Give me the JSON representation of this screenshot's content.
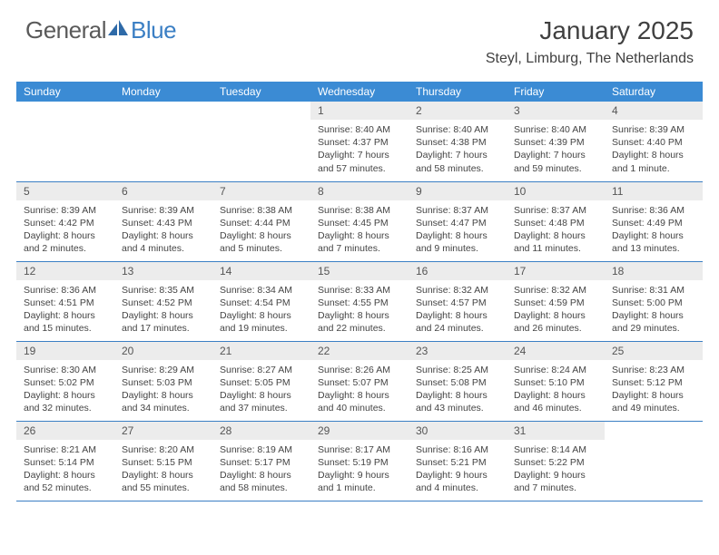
{
  "logo": {
    "text1": "General",
    "text2": "Blue"
  },
  "title": "January 2025",
  "location": "Steyl, Limburg, The Netherlands",
  "colors": {
    "header_bg": "#3b8bd4",
    "header_text": "#ffffff",
    "daynum_bg": "#ececec",
    "border": "#3b7fc4",
    "logo_gray": "#5a5a5a",
    "logo_blue": "#3b7fc4"
  },
  "weekdays": [
    "Sunday",
    "Monday",
    "Tuesday",
    "Wednesday",
    "Thursday",
    "Friday",
    "Saturday"
  ],
  "weeks": [
    [
      null,
      null,
      null,
      {
        "n": "1",
        "sr": "Sunrise: 8:40 AM",
        "ss": "Sunset: 4:37 PM",
        "d1": "Daylight: 7 hours",
        "d2": "and 57 minutes."
      },
      {
        "n": "2",
        "sr": "Sunrise: 8:40 AM",
        "ss": "Sunset: 4:38 PM",
        "d1": "Daylight: 7 hours",
        "d2": "and 58 minutes."
      },
      {
        "n": "3",
        "sr": "Sunrise: 8:40 AM",
        "ss": "Sunset: 4:39 PM",
        "d1": "Daylight: 7 hours",
        "d2": "and 59 minutes."
      },
      {
        "n": "4",
        "sr": "Sunrise: 8:39 AM",
        "ss": "Sunset: 4:40 PM",
        "d1": "Daylight: 8 hours",
        "d2": "and 1 minute."
      }
    ],
    [
      {
        "n": "5",
        "sr": "Sunrise: 8:39 AM",
        "ss": "Sunset: 4:42 PM",
        "d1": "Daylight: 8 hours",
        "d2": "and 2 minutes."
      },
      {
        "n": "6",
        "sr": "Sunrise: 8:39 AM",
        "ss": "Sunset: 4:43 PM",
        "d1": "Daylight: 8 hours",
        "d2": "and 4 minutes."
      },
      {
        "n": "7",
        "sr": "Sunrise: 8:38 AM",
        "ss": "Sunset: 4:44 PM",
        "d1": "Daylight: 8 hours",
        "d2": "and 5 minutes."
      },
      {
        "n": "8",
        "sr": "Sunrise: 8:38 AM",
        "ss": "Sunset: 4:45 PM",
        "d1": "Daylight: 8 hours",
        "d2": "and 7 minutes."
      },
      {
        "n": "9",
        "sr": "Sunrise: 8:37 AM",
        "ss": "Sunset: 4:47 PM",
        "d1": "Daylight: 8 hours",
        "d2": "and 9 minutes."
      },
      {
        "n": "10",
        "sr": "Sunrise: 8:37 AM",
        "ss": "Sunset: 4:48 PM",
        "d1": "Daylight: 8 hours",
        "d2": "and 11 minutes."
      },
      {
        "n": "11",
        "sr": "Sunrise: 8:36 AM",
        "ss": "Sunset: 4:49 PM",
        "d1": "Daylight: 8 hours",
        "d2": "and 13 minutes."
      }
    ],
    [
      {
        "n": "12",
        "sr": "Sunrise: 8:36 AM",
        "ss": "Sunset: 4:51 PM",
        "d1": "Daylight: 8 hours",
        "d2": "and 15 minutes."
      },
      {
        "n": "13",
        "sr": "Sunrise: 8:35 AM",
        "ss": "Sunset: 4:52 PM",
        "d1": "Daylight: 8 hours",
        "d2": "and 17 minutes."
      },
      {
        "n": "14",
        "sr": "Sunrise: 8:34 AM",
        "ss": "Sunset: 4:54 PM",
        "d1": "Daylight: 8 hours",
        "d2": "and 19 minutes."
      },
      {
        "n": "15",
        "sr": "Sunrise: 8:33 AM",
        "ss": "Sunset: 4:55 PM",
        "d1": "Daylight: 8 hours",
        "d2": "and 22 minutes."
      },
      {
        "n": "16",
        "sr": "Sunrise: 8:32 AM",
        "ss": "Sunset: 4:57 PM",
        "d1": "Daylight: 8 hours",
        "d2": "and 24 minutes."
      },
      {
        "n": "17",
        "sr": "Sunrise: 8:32 AM",
        "ss": "Sunset: 4:59 PM",
        "d1": "Daylight: 8 hours",
        "d2": "and 26 minutes."
      },
      {
        "n": "18",
        "sr": "Sunrise: 8:31 AM",
        "ss": "Sunset: 5:00 PM",
        "d1": "Daylight: 8 hours",
        "d2": "and 29 minutes."
      }
    ],
    [
      {
        "n": "19",
        "sr": "Sunrise: 8:30 AM",
        "ss": "Sunset: 5:02 PM",
        "d1": "Daylight: 8 hours",
        "d2": "and 32 minutes."
      },
      {
        "n": "20",
        "sr": "Sunrise: 8:29 AM",
        "ss": "Sunset: 5:03 PM",
        "d1": "Daylight: 8 hours",
        "d2": "and 34 minutes."
      },
      {
        "n": "21",
        "sr": "Sunrise: 8:27 AM",
        "ss": "Sunset: 5:05 PM",
        "d1": "Daylight: 8 hours",
        "d2": "and 37 minutes."
      },
      {
        "n": "22",
        "sr": "Sunrise: 8:26 AM",
        "ss": "Sunset: 5:07 PM",
        "d1": "Daylight: 8 hours",
        "d2": "and 40 minutes."
      },
      {
        "n": "23",
        "sr": "Sunrise: 8:25 AM",
        "ss": "Sunset: 5:08 PM",
        "d1": "Daylight: 8 hours",
        "d2": "and 43 minutes."
      },
      {
        "n": "24",
        "sr": "Sunrise: 8:24 AM",
        "ss": "Sunset: 5:10 PM",
        "d1": "Daylight: 8 hours",
        "d2": "and 46 minutes."
      },
      {
        "n": "25",
        "sr": "Sunrise: 8:23 AM",
        "ss": "Sunset: 5:12 PM",
        "d1": "Daylight: 8 hours",
        "d2": "and 49 minutes."
      }
    ],
    [
      {
        "n": "26",
        "sr": "Sunrise: 8:21 AM",
        "ss": "Sunset: 5:14 PM",
        "d1": "Daylight: 8 hours",
        "d2": "and 52 minutes."
      },
      {
        "n": "27",
        "sr": "Sunrise: 8:20 AM",
        "ss": "Sunset: 5:15 PM",
        "d1": "Daylight: 8 hours",
        "d2": "and 55 minutes."
      },
      {
        "n": "28",
        "sr": "Sunrise: 8:19 AM",
        "ss": "Sunset: 5:17 PM",
        "d1": "Daylight: 8 hours",
        "d2": "and 58 minutes."
      },
      {
        "n": "29",
        "sr": "Sunrise: 8:17 AM",
        "ss": "Sunset: 5:19 PM",
        "d1": "Daylight: 9 hours",
        "d2": "and 1 minute."
      },
      {
        "n": "30",
        "sr": "Sunrise: 8:16 AM",
        "ss": "Sunset: 5:21 PM",
        "d1": "Daylight: 9 hours",
        "d2": "and 4 minutes."
      },
      {
        "n": "31",
        "sr": "Sunrise: 8:14 AM",
        "ss": "Sunset: 5:22 PM",
        "d1": "Daylight: 9 hours",
        "d2": "and 7 minutes."
      },
      null
    ]
  ]
}
